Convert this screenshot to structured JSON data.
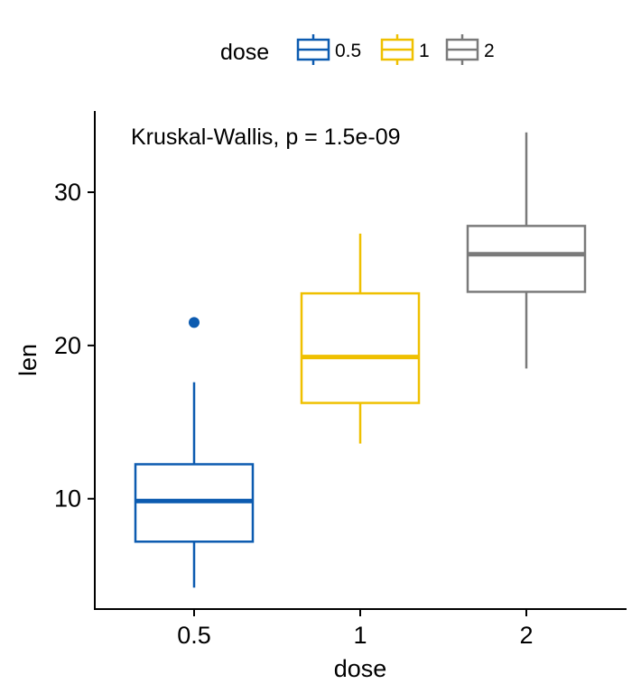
{
  "chart_data": {
    "type": "box",
    "title": "",
    "xlabel": "dose",
    "ylabel": "len",
    "annotation": "Kruskal-Wallis, p = 1.5e-09",
    "ylim": [
      2.8,
      35.3
    ],
    "yticks": [
      10,
      20,
      30
    ],
    "grid": false,
    "legend": {
      "title": "dose",
      "position": "top",
      "entries": [
        "0.5",
        "1",
        "2"
      ]
    },
    "categories": [
      "0.5",
      "1",
      "2"
    ],
    "series": [
      {
        "name": "0.5",
        "color": "#0C5BB0",
        "min": 4.2,
        "q1": 7.2,
        "median": 9.85,
        "q3": 12.25,
        "max": 17.6,
        "outliers": [
          21.5
        ]
      },
      {
        "name": "1",
        "color": "#EFC000",
        "min": 13.6,
        "q1": 16.25,
        "median": 19.25,
        "q3": 23.4,
        "max": 27.3,
        "outliers": []
      },
      {
        "name": "2",
        "color": "#7A7A7A",
        "min": 18.5,
        "q1": 23.5,
        "median": 25.95,
        "q3": 27.8,
        "max": 33.9,
        "outliers": []
      }
    ]
  }
}
